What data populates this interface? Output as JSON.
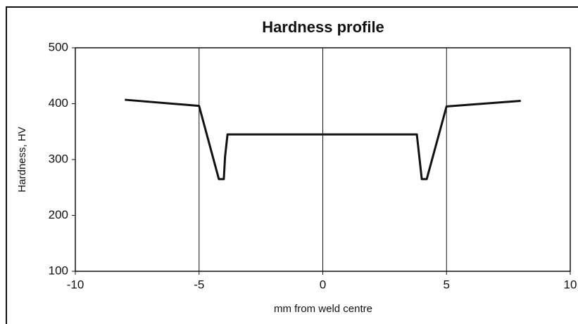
{
  "chart_data": {
    "type": "line",
    "title": "Hardness profile",
    "x_label": "mm from weld centre",
    "y_label": "Hardness, HV",
    "x": [
      -8,
      -5,
      -4.2,
      -4,
      -3.95,
      -3.85,
      3.8,
      4,
      4.2,
      5,
      8
    ],
    "series": [
      {
        "name": "Hardness",
        "color": "#111111",
        "values": [
          407,
          396,
          265,
          265,
          305,
          345,
          345,
          265,
          265,
          395,
          405
        ]
      }
    ],
    "xlim": [
      -10,
      10
    ],
    "xticks": [
      -10,
      -5,
      0,
      5,
      10
    ],
    "ylim": [
      100,
      500
    ],
    "yticks": [
      100,
      200,
      300,
      400,
      500
    ],
    "grid": "x"
  }
}
